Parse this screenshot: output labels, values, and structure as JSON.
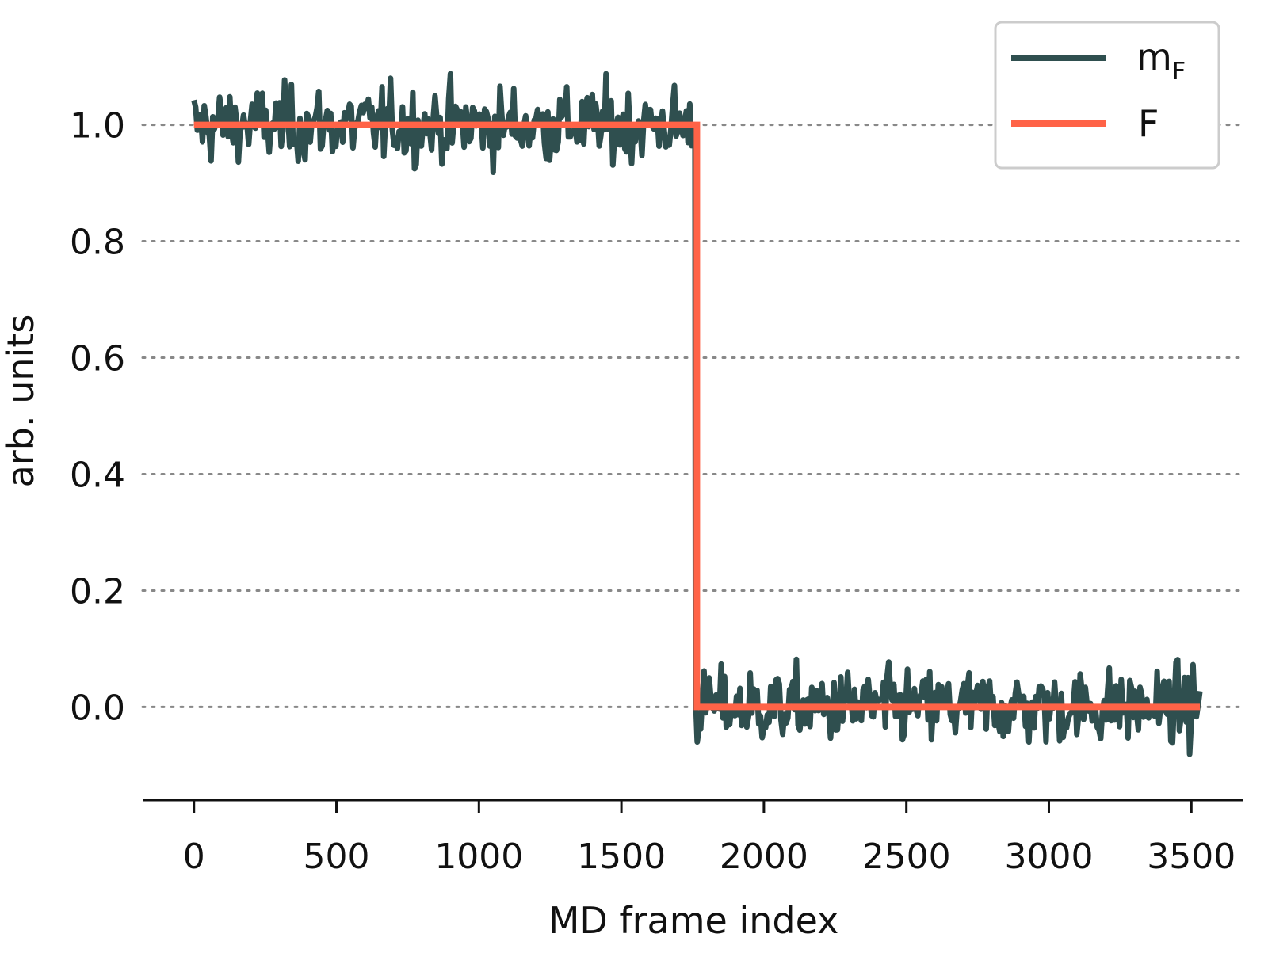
{
  "chart_data": {
    "type": "line",
    "xlabel": "MD frame index",
    "ylabel": "arb. units",
    "xlim": [
      -180,
      3680
    ],
    "ylim": [
      -0.16,
      1.16
    ],
    "x_ticks": [
      0,
      500,
      1000,
      1500,
      2000,
      2500,
      3000,
      3500
    ],
    "x_tick_labels": [
      "0",
      "500",
      "1000",
      "1500",
      "2000",
      "2500",
      "3000",
      "3500"
    ],
    "y_ticks": [
      0.0,
      0.2,
      0.4,
      0.6,
      0.8,
      1.0
    ],
    "y_tick_labels": [
      "0.0",
      "0.2",
      "0.4",
      "0.6",
      "0.8",
      "1.0"
    ],
    "grid": "horizontal dotted",
    "legend_position": "top-right",
    "series": [
      {
        "name": "m",
        "name_subscript": "F",
        "color": "#2f4f4f",
        "description_values": {
          "segment_1": {
            "x_range": [
              0,
              1760
            ],
            "mean": 1.0,
            "min": 0.88,
            "max": 1.12
          },
          "segment_2": {
            "x_range": [
              1760,
              3530
            ],
            "mean": 0.0,
            "min": -0.1,
            "max": 0.14
          }
        }
      },
      {
        "name": "F",
        "color": "#ff6347",
        "x": [
          0,
          1765,
          1765,
          3530
        ],
        "y": [
          1.0,
          1.0,
          0.0,
          0.0
        ]
      }
    ]
  }
}
